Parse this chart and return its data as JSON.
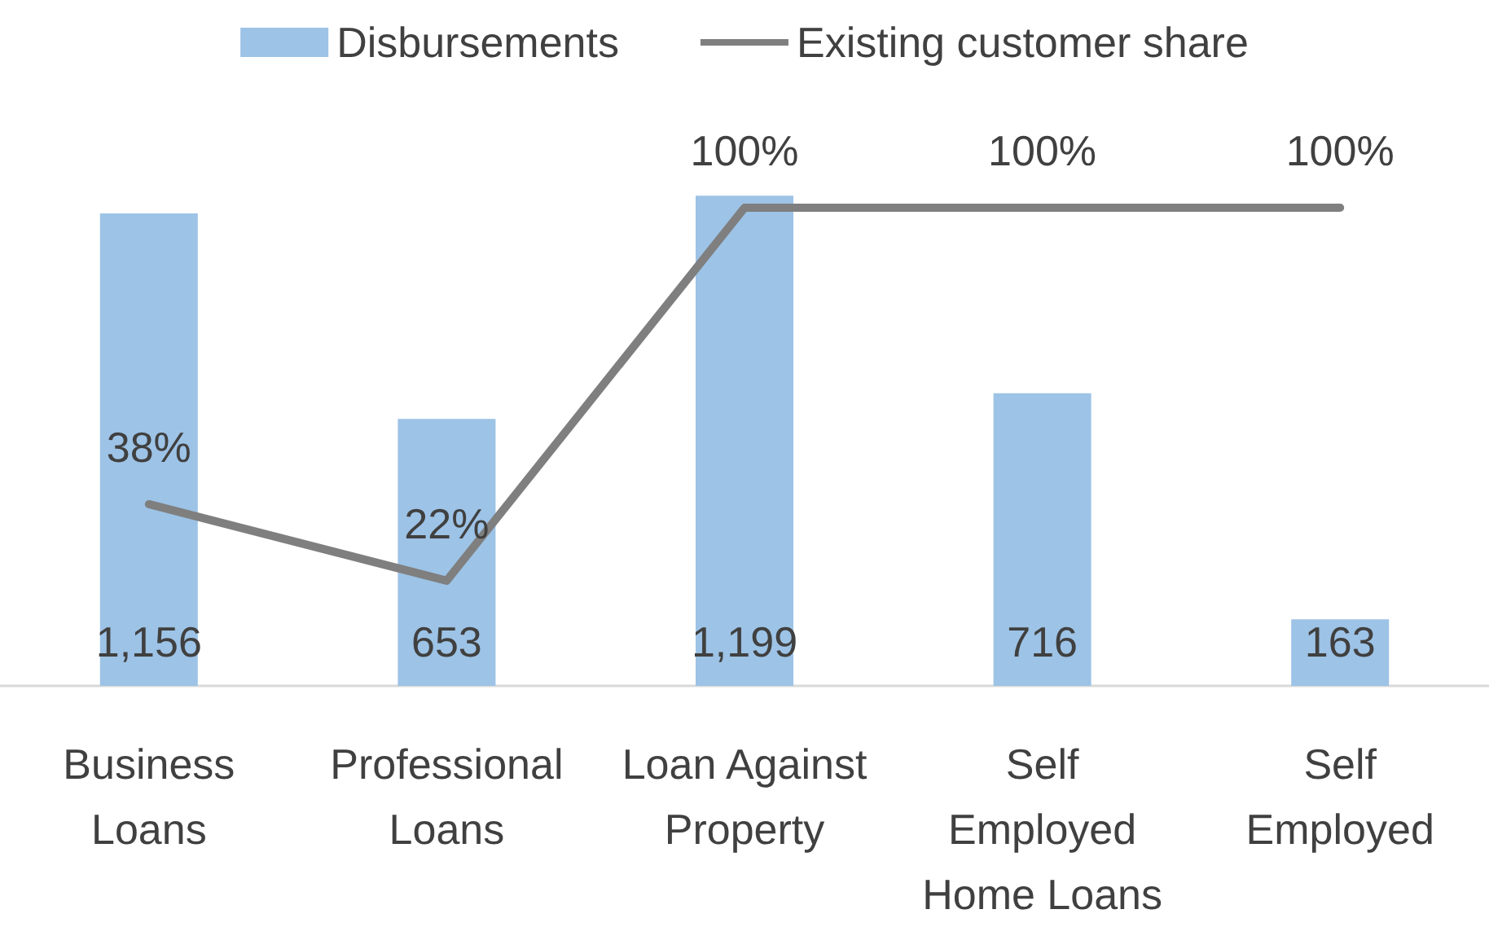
{
  "chart_data": {
    "type": "bar",
    "categories": [
      "Business\nLoans",
      "Professional\nLoans",
      "Loan Against\nProperty",
      "Self\nEmployed\nHome Loans",
      "Self\nEmployed"
    ],
    "series": [
      {
        "name": "Disbursements",
        "color": "#9dc3e6",
        "values": [
          1156,
          653,
          1199,
          716,
          163
        ],
        "value_labels": [
          "1,156",
          "653",
          "1,199",
          "716",
          "163"
        ]
      },
      {
        "name": "Existing customer share",
        "type": "line",
        "axis": "y2",
        "color": "#7f7f7f",
        "values": [
          38,
          22,
          100,
          100,
          100
        ],
        "value_labels": [
          "38%",
          "22%",
          "100%",
          "100%",
          "100%"
        ]
      }
    ],
    "tick_labels": "x",
    "legend": "top",
    "grid": false,
    "marker": "none",
    "line_style": "solid"
  }
}
